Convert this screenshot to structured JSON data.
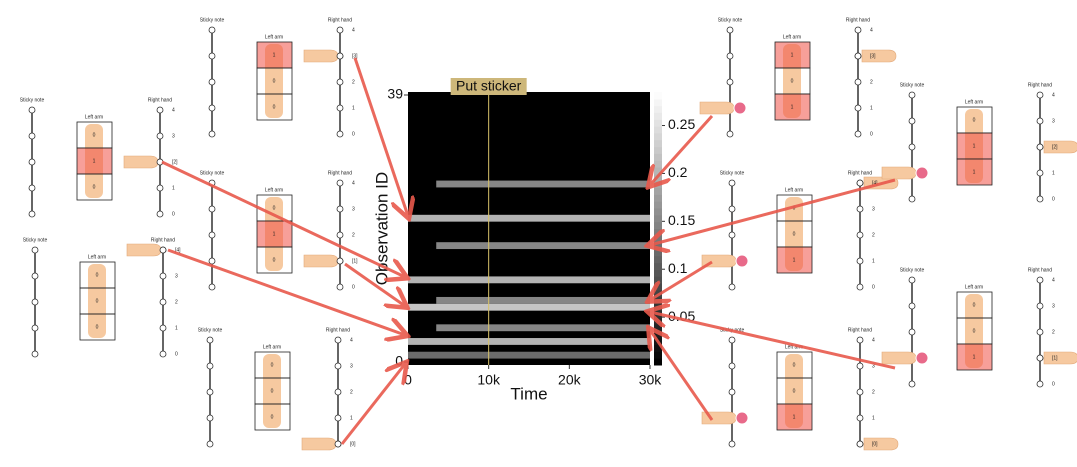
{
  "heatmap": {
    "title": "Put sticker",
    "y_label": "Observation ID",
    "x_label": "Time",
    "xlim": [
      0,
      30000
    ],
    "xticks": [
      {
        "value": 0,
        "label": "0"
      },
      {
        "value": 10000,
        "label": "10k"
      },
      {
        "value": 20000,
        "label": "20k"
      },
      {
        "value": 30000,
        "label": "30k"
      }
    ],
    "ylim": [
      0,
      39
    ],
    "yticks": [
      0,
      39
    ],
    "event_time": 10000,
    "clim": [
      0,
      0.285
    ],
    "colorbar_ticks": [
      0.05,
      0.1,
      0.15,
      0.2,
      0.25
    ],
    "bands": [
      {
        "row": 26,
        "start": 3500,
        "value": 0.15
      },
      {
        "row": 21,
        "start": 0,
        "value": 0.2
      },
      {
        "row": 17,
        "start": 3500,
        "value": 0.15
      },
      {
        "row": 12,
        "start": 0,
        "value": 0.2
      },
      {
        "row": 9,
        "start": 3500,
        "value": 0.15
      },
      {
        "row": 8,
        "start": 0,
        "value": 0.22
      },
      {
        "row": 5,
        "start": 3500,
        "value": 0.15
      },
      {
        "row": 3,
        "start": 0,
        "value": 0.2
      },
      {
        "row": 1,
        "start": 0,
        "value": 0.12
      }
    ]
  },
  "panel_labels": {
    "sticky": "Sticky note",
    "arm": "Left arm",
    "hand": "Right hand",
    "levels": [
      4,
      3,
      2,
      1,
      0
    ]
  },
  "panels": [
    {
      "arm": [
        0,
        1,
        0
      ],
      "hand": {
        "value": 2,
        "label": "[2]"
      }
    },
    {
      "arm": [
        0,
        0,
        0
      ],
      "hand": {
        "value": 4,
        "label": "[4]"
      }
    },
    {
      "arm": [
        1,
        0,
        0
      ],
      "hand": {
        "value": 3,
        "label": "[3]"
      }
    },
    {
      "arm": [
        0,
        1,
        0
      ],
      "hand": {
        "value": 1,
        "label": "[1]"
      }
    },
    {
      "arm": [
        0,
        0,
        0
      ],
      "hand": {
        "value": 0,
        "label": "[0]"
      }
    },
    {
      "arm": [
        1,
        0,
        1
      ],
      "hand": {
        "value": 3,
        "label": "[3]"
      }
    },
    {
      "arm": [
        0,
        0,
        1
      ],
      "hand": {
        "value": 4,
        "label": "[4]"
      }
    },
    {
      "arm": [
        0,
        0,
        1
      ],
      "hand": {
        "value": 0,
        "label": "[0]"
      }
    },
    {
      "arm": [
        0,
        1,
        1
      ],
      "hand": {
        "value": 2,
        "label": "[2]"
      }
    },
    {
      "arm": [
        0,
        0,
        1
      ],
      "hand": {
        "value": 1,
        "label": "[1]"
      }
    }
  ]
}
